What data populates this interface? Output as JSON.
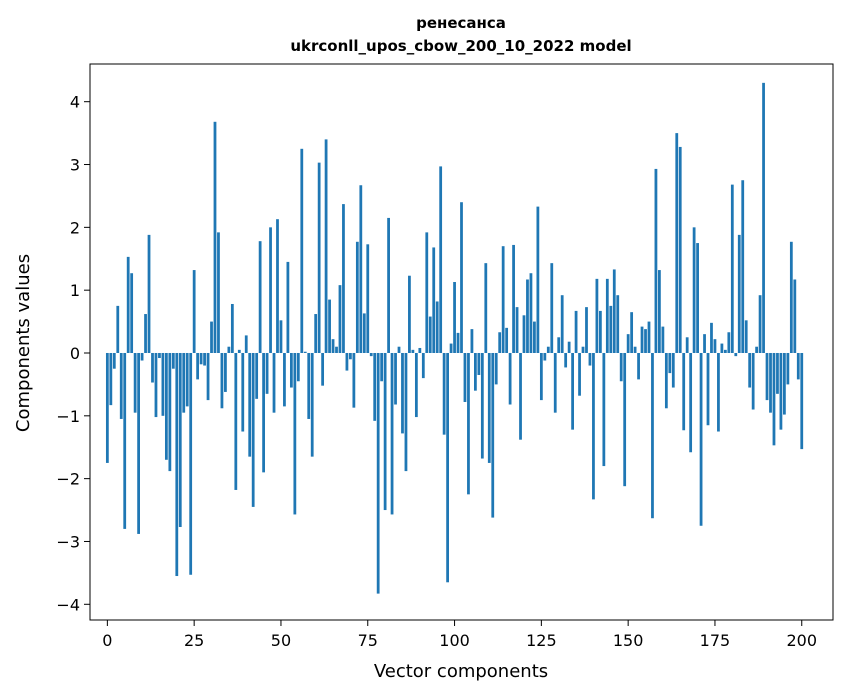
{
  "chart_data": {
    "type": "bar",
    "title": "ренесанса",
    "subtitle": "ukrconll_upos_cbow_200_10_2022 model",
    "xlabel": "Vector components",
    "ylabel": "Components values",
    "xlim": [
      -5,
      209
    ],
    "ylim": [
      -4.25,
      4.6
    ],
    "xticks": [
      0,
      25,
      50,
      75,
      100,
      125,
      150,
      175,
      200
    ],
    "yticks": [
      -4,
      -3,
      -2,
      -1,
      0,
      1,
      2,
      3,
      4
    ],
    "xtick_labels": [
      "0",
      "25",
      "50",
      "75",
      "100",
      "125",
      "150",
      "175",
      "200"
    ],
    "ytick_labels": [
      "−4",
      "−3",
      "−2",
      "−1",
      "0",
      "1",
      "2",
      "3",
      "4"
    ],
    "bar_color": "#1f77b4",
    "grid": false,
    "values": [
      -1.75,
      -0.83,
      -0.25,
      0.75,
      -1.05,
      -2.8,
      1.53,
      1.27,
      -0.95,
      -2.88,
      -0.12,
      0.62,
      1.88,
      -0.47,
      -1.02,
      -0.08,
      -1.0,
      -1.7,
      -1.88,
      -0.25,
      -3.55,
      -2.77,
      -0.95,
      -0.85,
      -3.53,
      1.32,
      -0.42,
      -0.18,
      -0.2,
      -0.75,
      0.5,
      3.68,
      1.92,
      -0.88,
      -0.62,
      0.1,
      0.78,
      -2.18,
      0.05,
      -1.25,
      0.28,
      -1.65,
      -2.45,
      -0.73,
      1.78,
      -1.9,
      -0.65,
      2.0,
      -0.95,
      2.13,
      0.52,
      -0.85,
      1.45,
      -0.55,
      -2.57,
      -0.45,
      3.25,
      0.02,
      -1.05,
      -1.65,
      0.62,
      3.03,
      -0.52,
      3.4,
      0.85,
      0.22,
      0.1,
      1.08,
      2.37,
      -0.28,
      -0.1,
      -0.87,
      1.77,
      2.67,
      0.63,
      1.73,
      -0.05,
      -1.08,
      -3.83,
      -0.45,
      -2.5,
      2.15,
      -2.57,
      -0.82,
      0.1,
      -1.28,
      -1.88,
      1.23,
      0.05,
      -1.02,
      0.08,
      -0.4,
      1.92,
      0.58,
      1.68,
      0.82,
      2.97,
      -1.3,
      -3.65,
      0.15,
      1.13,
      0.32,
      2.4,
      -0.78,
      -2.25,
      0.38,
      -0.6,
      -0.35,
      -1.68,
      1.43,
      -1.75,
      -2.62,
      -0.5,
      0.33,
      1.7,
      0.4,
      -0.82,
      1.72,
      0.73,
      -1.38,
      0.6,
      1.17,
      1.27,
      0.5,
      2.33,
      -0.75,
      -0.12,
      0.1,
      1.43,
      -0.95,
      0.25,
      0.92,
      -0.23,
      0.18,
      -1.22,
      0.67,
      -0.68,
      0.1,
      0.73,
      -0.2,
      -2.33,
      1.18,
      0.67,
      -1.8,
      1.18,
      0.75,
      1.33,
      0.92,
      -0.45,
      -2.12,
      0.3,
      0.65,
      0.1,
      -0.42,
      0.42,
      0.38,
      0.5,
      -2.63,
      2.93,
      1.32,
      0.42,
      -0.88,
      -0.32,
      -0.55,
      3.5,
      3.28,
      -1.23,
      0.25,
      -1.58,
      2.0,
      1.75,
      -2.75,
      0.3,
      -1.15,
      0.48,
      0.22,
      -1.25,
      0.15,
      0.05,
      0.33,
      2.68,
      -0.05,
      1.88,
      2.75,
      0.52,
      -0.55,
      -0.9,
      0.1,
      0.92,
      4.3,
      -0.75,
      -0.95,
      -1.47,
      -0.65,
      -1.22,
      -0.98,
      -0.5,
      1.77,
      1.17,
      -0.42,
      -1.53
    ]
  }
}
